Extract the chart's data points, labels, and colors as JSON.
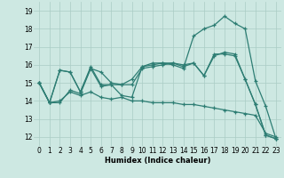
{
  "xlabel": "Humidex (Indice chaleur)",
  "xlim": [
    -0.5,
    23.5
  ],
  "ylim": [
    11.5,
    19.5
  ],
  "yticks": [
    12,
    13,
    14,
    15,
    16,
    17,
    18,
    19
  ],
  "xticks": [
    0,
    1,
    2,
    3,
    4,
    5,
    6,
    7,
    8,
    9,
    10,
    11,
    12,
    13,
    14,
    15,
    16,
    17,
    18,
    19,
    20,
    21,
    22,
    23
  ],
  "bg_color": "#cde8e2",
  "grid_color": "#aaccc5",
  "line_color": "#2d7d73",
  "lines": [
    [
      15.0,
      13.9,
      13.9,
      14.6,
      14.4,
      15.8,
      14.8,
      14.9,
      14.3,
      14.2,
      15.9,
      16.1,
      16.1,
      16.0,
      15.8,
      17.6,
      18.0,
      18.2,
      18.7,
      18.3,
      18.0,
      15.1,
      13.7,
      11.9
    ],
    [
      15.0,
      13.9,
      15.7,
      15.6,
      14.5,
      15.9,
      14.9,
      14.9,
      14.9,
      14.9,
      15.8,
      15.9,
      16.0,
      16.1,
      15.9,
      16.1,
      15.4,
      16.6,
      16.6,
      16.5,
      15.2,
      13.8,
      12.1,
      11.9
    ],
    [
      15.0,
      13.9,
      15.7,
      15.6,
      14.5,
      15.8,
      15.6,
      15.0,
      14.9,
      15.2,
      15.9,
      16.0,
      16.1,
      16.1,
      16.0,
      16.1,
      15.4,
      16.5,
      16.7,
      16.6,
      15.2,
      13.8,
      12.1,
      11.9
    ],
    [
      15.0,
      13.9,
      14.0,
      14.5,
      14.3,
      14.5,
      14.2,
      14.1,
      14.2,
      14.0,
      14.0,
      13.9,
      13.9,
      13.9,
      13.8,
      13.8,
      13.7,
      13.6,
      13.5,
      13.4,
      13.3,
      13.2,
      12.2,
      12.0
    ]
  ]
}
